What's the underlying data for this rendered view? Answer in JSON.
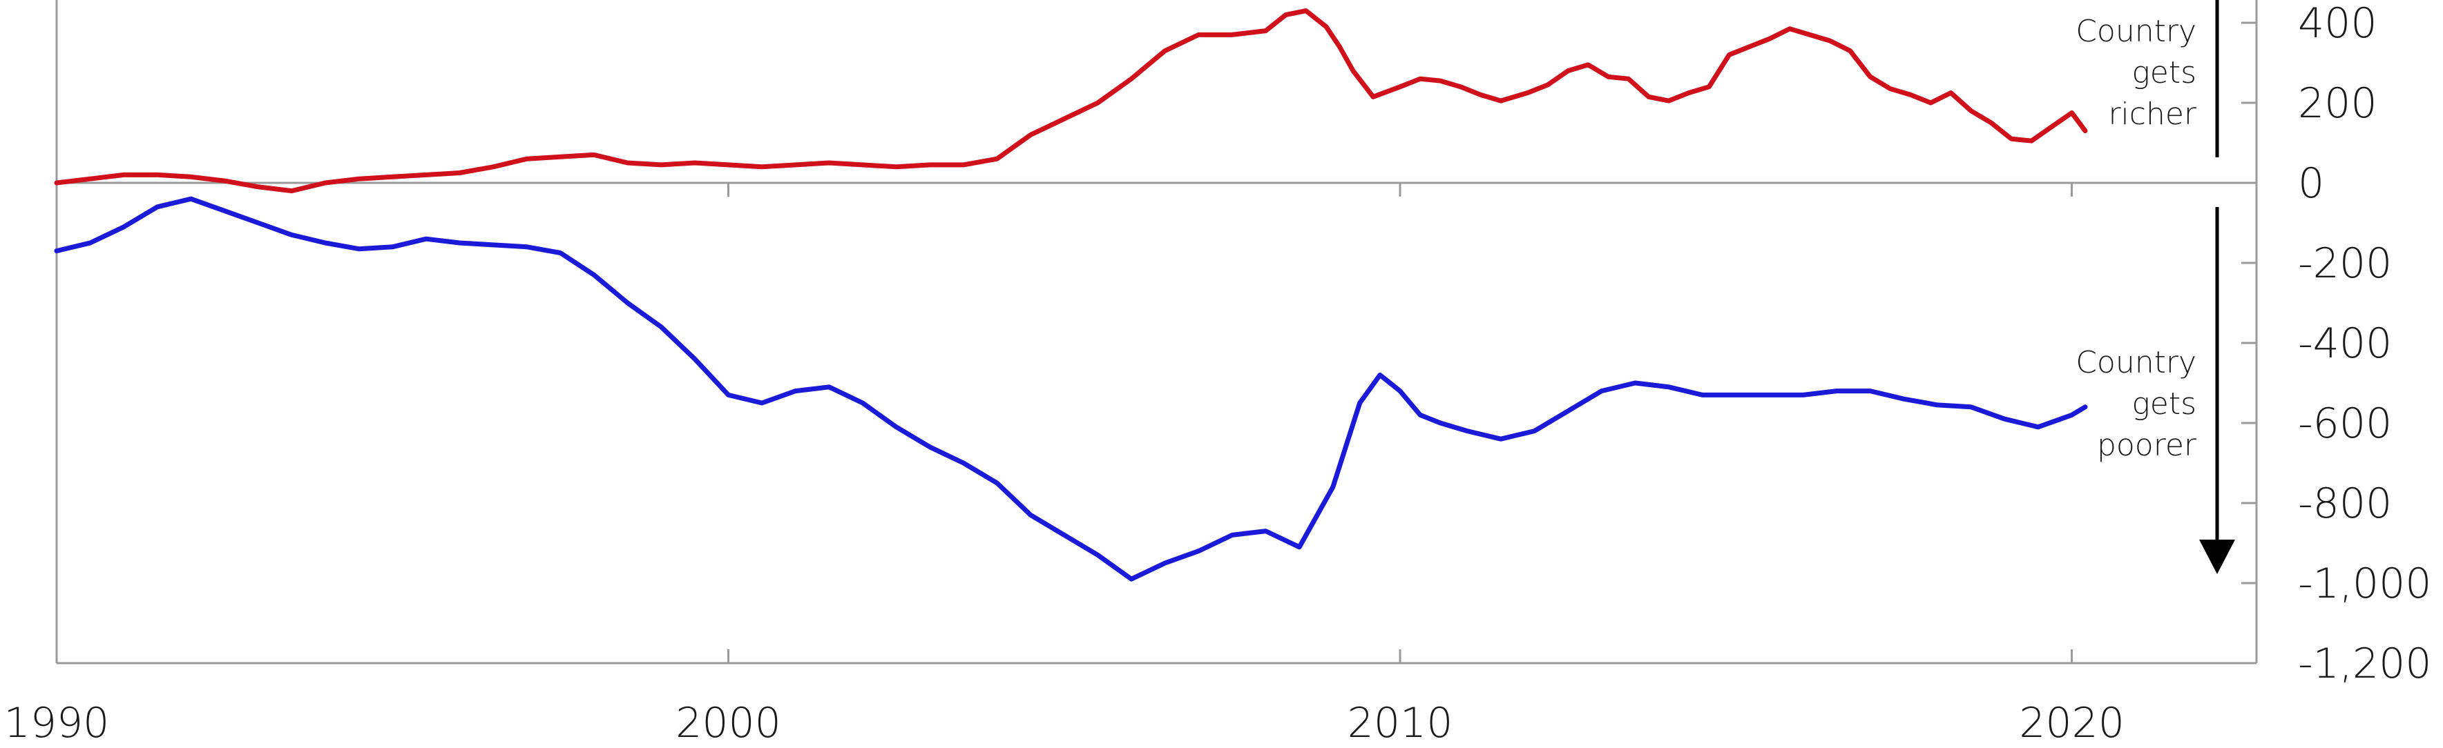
{
  "colors": {
    "upper_series": "#d0111b",
    "lower_series": "#1a1ad8",
    "axis": "#9a9a9a",
    "arrow": "#000000",
    "text": "#1a1a1a"
  },
  "chart_data": {
    "type": "line",
    "title": "",
    "xlabel": "",
    "ylabel": "",
    "xlim": [
      1990,
      2023
    ],
    "ylim": [
      -1200,
      450
    ],
    "grid": false,
    "x_ticks": [
      1990,
      2000,
      2010,
      2020
    ],
    "x_tick_labels": [
      "1990",
      "2000",
      "2010",
      "2020"
    ],
    "y_ticks": [
      400,
      200,
      0,
      -200,
      -400,
      -600,
      -800,
      -1000,
      -1200
    ],
    "y_tick_labels": [
      "400",
      "200",
      "0",
      "-200",
      "-400",
      "-600",
      "-800",
      "-1,000",
      "-1,200"
    ],
    "annotations": {
      "richer": [
        "Country",
        "gets",
        "richer"
      ],
      "poorer": [
        "Country",
        "gets",
        "poorer"
      ]
    },
    "series": [
      {
        "x": [
          1990,
          1990.5,
          1991,
          1991.5,
          1992,
          1992.5,
          1993,
          1993.5,
          1994,
          1994.5,
          1995,
          1995.5,
          1996,
          1996.5,
          1997,
          1997.5,
          1998,
          1998.5,
          1999,
          1999.5,
          2000,
          2000.5,
          2001,
          2001.5,
          2002,
          2002.5,
          2003,
          2003.5,
          2004,
          2004.5,
          2005,
          2005.5,
          2006,
          2006.5,
          2007,
          2007.5,
          2008,
          2008.3,
          2008.6,
          2008.9,
          2009.1,
          2009.3,
          2009.6,
          2010,
          2010.3,
          2010.6,
          2010.9,
          2011.2,
          2011.5,
          2011.9,
          2012.2,
          2012.5,
          2012.8,
          2013.1,
          2013.4,
          2013.7,
          2014,
          2014.3,
          2014.6,
          2014.9,
          2015.2,
          2015.5,
          2015.8,
          2016.1,
          2016.4,
          2016.7,
          2017,
          2017.3,
          2017.6,
          2017.9,
          2018.2,
          2018.5,
          2018.8,
          2019.1,
          2019.4,
          2019.7,
          2020,
          2020.2
        ],
        "values": [
          0,
          10,
          20,
          20,
          15,
          5,
          -10,
          -20,
          0,
          10,
          15,
          20,
          25,
          40,
          60,
          65,
          70,
          50,
          45,
          50,
          45,
          40,
          45,
          50,
          45,
          40,
          45,
          45,
          60,
          120,
          160,
          200,
          260,
          330,
          370,
          370,
          380,
          420,
          430,
          390,
          340,
          280,
          215,
          240,
          260,
          255,
          240,
          220,
          205,
          225,
          245,
          280,
          295,
          265,
          260,
          215,
          205,
          225,
          240,
          320,
          340,
          360,
          385,
          370,
          355,
          330,
          265,
          235,
          220,
          200,
          225,
          180,
          150,
          110,
          105,
          140,
          175,
          130
        ]
      },
      {
        "x": [
          1990,
          1990.5,
          1991,
          1991.5,
          1992,
          1992.5,
          1993,
          1993.5,
          1994,
          1994.5,
          1995,
          1995.5,
          1996,
          1996.5,
          1997,
          1997.5,
          1998,
          1998.5,
          1999,
          1999.5,
          2000,
          2000.5,
          2001,
          2001.5,
          2002,
          2002.5,
          2003,
          2003.5,
          2004,
          2004.5,
          2005,
          2005.5,
          2006,
          2006.5,
          2007,
          2007.5,
          2008,
          2008.5,
          2009,
          2009.4,
          2009.7,
          2010,
          2010.3,
          2010.6,
          2011,
          2011.5,
          2012,
          2012.5,
          2013,
          2013.5,
          2014,
          2014.5,
          2015,
          2015.5,
          2016,
          2016.5,
          2017,
          2017.5,
          2018,
          2018.5,
          2019,
          2019.5,
          2020,
          2020.2
        ],
        "values": [
          -170,
          -150,
          -110,
          -60,
          -40,
          -70,
          -100,
          -130,
          -150,
          -165,
          -160,
          -140,
          -150,
          -155,
          -160,
          -175,
          -230,
          -300,
          -360,
          -440,
          -530,
          -550,
          -520,
          -510,
          -550,
          -610,
          -660,
          -700,
          -750,
          -830,
          -880,
          -930,
          -990,
          -950,
          -920,
          -880,
          -870,
          -910,
          -760,
          -550,
          -480,
          -520,
          -580,
          -600,
          -620,
          -640,
          -620,
          -570,
          -520,
          -500,
          -510,
          -530,
          -530,
          -530,
          -530,
          -520,
          -520,
          -540,
          -555,
          -560,
          -590,
          -610,
          -580,
          -560
        ]
      }
    ]
  }
}
